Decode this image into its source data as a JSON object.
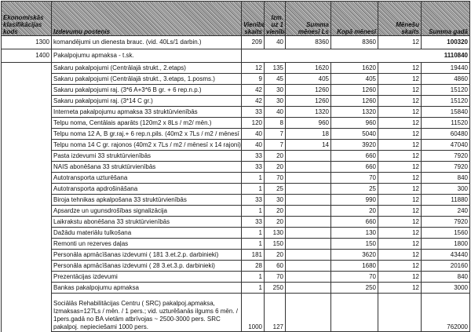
{
  "header": {
    "code": "Ekonomiskās klasifikācijas kods",
    "item": "Izdevumu posteņis",
    "c1": "Vienību skaits",
    "c2": "Izm. uz 1 vienību",
    "c3": "Summa mēnesī Ls",
    "c4": "Kopā mēnesī",
    "c5": "Mēnešu skaits",
    "c6": "Summa gadā"
  },
  "rows": [
    {
      "code": "1300",
      "item": "komandējumi un dienesta brauc. (vid. 40Ls/1 darbin.)",
      "c1": "209",
      "c2": "40",
      "c3": "8360",
      "c4": "8360",
      "c5": "12",
      "c6": "100320"
    },
    {
      "code": "1400",
      "item": "Pakalpojumu apmaksa -  t.sk.",
      "c6": "1110840"
    },
    {
      "item": "Sakaru pakalpojumi (Centrālajā strukt., 2.etaps)",
      "c1": "12",
      "c2": "135",
      "c3": "1620",
      "c4": "1620",
      "c5": "12",
      "c6": "19440"
    },
    {
      "item": "Sakaru pakalpojumi (Centrālajā strukt., 3.etaps, 1.posms.)",
      "c1": "9",
      "c2": "45",
      "c3": "405",
      "c4": "405",
      "c5": "12",
      "c6": "4860"
    },
    {
      "item": "Sakaru pakalpojumi raj. (3*6 A+3*6 B gr. + 6 rep.n.p.)",
      "c1": "42",
      "c2": "30",
      "c3": "1260",
      "c4": "1260",
      "c5": "12",
      "c6": "15120"
    },
    {
      "item": "Sakaru pakalpojumi raj. (3*14 C gr.)",
      "c1": "42",
      "c2": "30",
      "c3": "1260",
      "c4": "1260",
      "c5": "12",
      "c6": "15120"
    },
    {
      "item": "Interneta pakalpojumu apmaksa 33 struktūrvienībās",
      "c1": "33",
      "c2": "40",
      "c3": "1320",
      "c4": "1320",
      "c5": "12",
      "c6": "15840"
    },
    {
      "item": "Telpu noma, Centālais aparāts (120m2 x 8Ls / m2/  mēn.)",
      "c1": "120",
      "c2": "8",
      "c3": "960",
      "c4": "960",
      "c5": "12",
      "c6": "11520"
    },
    {
      "item": "Telpu noma  12 A, B gr.raj.+ 6 rep.n.pils. (40m2 x 7Ls / m2 / mēnesī x 18)",
      "c1": "40",
      "c2": "7",
      "c3": "18",
      "c4": "5040",
      "c5": "12",
      "c6": "60480"
    },
    {
      "item": "Telpu noma  14 C gr. rajonos (40m2 x 7Ls / m2 / mēnesī x 14 rajoni)",
      "c1": "40",
      "c2": "7",
      "c3": "14",
      "c4": "3920",
      "c5": "12",
      "c6": "47040"
    },
    {
      "item": "Pasta izdevumi  33 struktūrvienībās",
      "c1": "33",
      "c2": "20",
      "c4": "660",
      "c5": "12",
      "c6": "7920"
    },
    {
      "item": "NAIS abonēšana 33 struktūrvienībās",
      "c1": "33",
      "c2": "20",
      "c4": "660",
      "c5": "12",
      "c6": "7920"
    },
    {
      "item": "Autotransporta uzturēšana",
      "c1": "1",
      "c2": "70",
      "c4": "70",
      "c5": "12",
      "c6": "840"
    },
    {
      "item": "Autotransporta apdrošināšana",
      "c1": "1",
      "c2": "25",
      "c4": "25",
      "c5": "12",
      "c6": "300"
    },
    {
      "item": "Biroja tehnikas apkalpošana 33 struktūrvienībās",
      "c1": "33",
      "c2": "30",
      "c4": "990",
      "c5": "12",
      "c6": "11880"
    },
    {
      "item": "Apsardze un ugunsdrošības signalizācija",
      "c1": "1",
      "c2": "20",
      "c4": "20",
      "c5": "12",
      "c6": "240"
    },
    {
      "item": "Laikrakstu abonēšana 33 struktūrvienībās",
      "c1": "33",
      "c2": "20",
      "c4": "660",
      "c5": "12",
      "c6": "7920"
    },
    {
      "item": "Dažādu materiālu tulkošana",
      "c1": "1",
      "c2": "130",
      "c4": "130",
      "c5": "12",
      "c6": "1560"
    },
    {
      "item": "Remonti un rezerves daļas",
      "c1": "1",
      "c2": "150",
      "c4": "150",
      "c5": "12",
      "c6": "1800"
    },
    {
      "item": "Personāla apmācīšanas izdevumi  ( 181 3.et.2.p. darbinieki)",
      "c1": "181",
      "c2": "20",
      "c4": "3620",
      "c5": "12",
      "c6": "43440"
    },
    {
      "item": "Personāla apmācīšanas izdevumi  ( 28 3.et.3.p. darbinieki)",
      "c1": "28",
      "c2": "60",
      "c4": "1680",
      "c5": "12",
      "c6": "20160"
    },
    {
      "item": "Prezentācijas izdevumi",
      "c1": "1",
      "c2": "70",
      "c4": "70",
      "c5": "12",
      "c6": "840"
    },
    {
      "item": "Bankas pakalpojumu apmaksa",
      "c1": "1",
      "c2": "250",
      "c4": "250",
      "c5": "12",
      "c6": "3000"
    },
    {
      "item": "Sociālās Rehabilitācijas Centru ( SRC) pakalpoj.apmaksa, Izmaksas=127Ls / mēn. / 1 pers.; vid. uzturēšanās ilgums 6 mēn. / 1pers.gadā no BA vietām atbrīvojas ~ 2500-3000 pers. SRC pakalpoj. nepieciešami 1000 pers.",
      "c1": "1000",
      "c2": "127",
      "c6": "762000"
    }
  ]
}
